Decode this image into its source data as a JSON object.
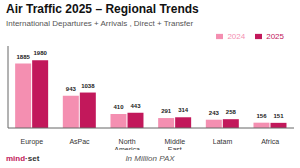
{
  "chart_data": {
    "type": "bar",
    "title": "Air Traffic 2025 – Regional Trends",
    "subtitle": "International Departures + Arrivals , Direct + Transfer",
    "xlabel": "In Million PAX",
    "annotations": [
      "mind",
      "·set"
    ],
    "categories": [
      "Europe",
      "AsPac",
      "North America",
      "Middle East",
      "Latam",
      "Africa"
    ],
    "series": [
      {
        "name": "2024",
        "color": "#f48fb1",
        "values": [
          1885,
          943,
          410,
          291,
          243,
          156
        ]
      },
      {
        "name": "2025",
        "color": "#c2185b",
        "values": [
          1980,
          1038,
          443,
          314,
          258,
          151
        ]
      }
    ],
    "ylim": [
      0,
      2400
    ],
    "tick_labels": "x",
    "data_labels": true,
    "legend": "upper right",
    "grid": false
  }
}
